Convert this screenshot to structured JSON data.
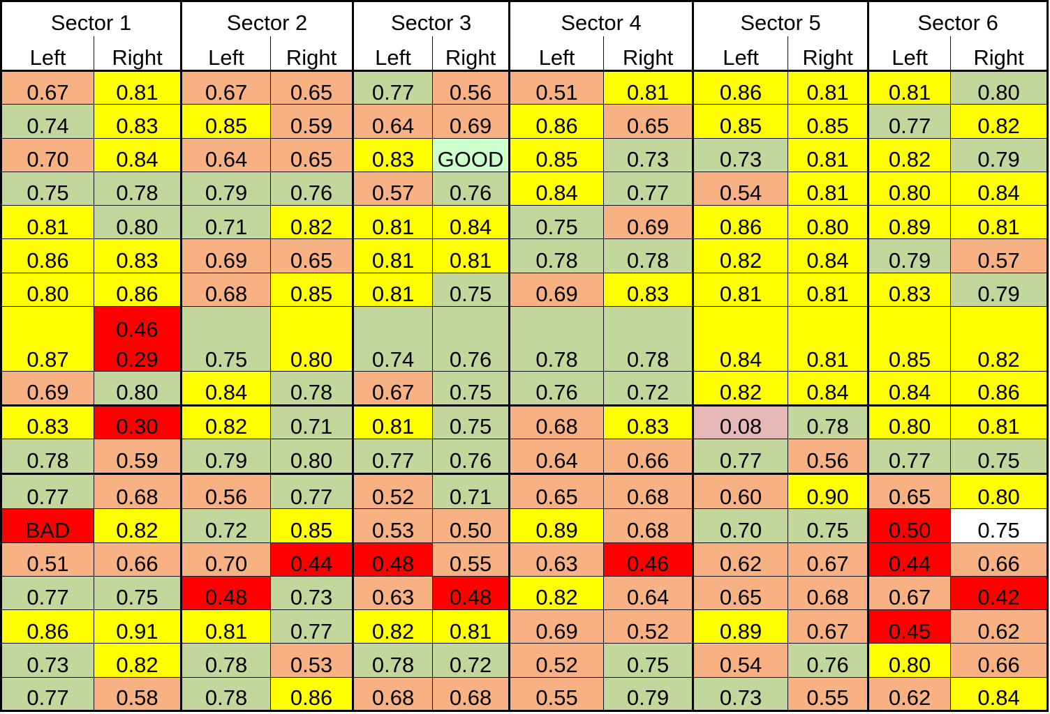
{
  "chart_data": {
    "type": "table",
    "title": "",
    "sectors": [
      "Sector 1",
      "Sector 2",
      "Sector 3",
      "Sector 4",
      "Sector 5",
      "Sector 6"
    ],
    "sides": [
      "Left",
      "Right"
    ],
    "palette": {
      "orange": "#F7B183",
      "yellow": "#FFFF00",
      "green": "#C3D69B",
      "red": "#FF0000",
      "pink": "#E6B9B8",
      "lightgreen": "#CCFFCC",
      "white": "#FFFFFF"
    },
    "separators_after_rows": [
      9,
      11
    ],
    "rows": [
      [
        [
          "0.67",
          "orange"
        ],
        [
          "0.81",
          "yellow"
        ],
        [
          "0.67",
          "orange"
        ],
        [
          "0.65",
          "orange"
        ],
        [
          "0.77",
          "green"
        ],
        [
          "0.56",
          "orange"
        ],
        [
          "0.51",
          "orange"
        ],
        [
          "0.81",
          "yellow"
        ],
        [
          "0.86",
          "yellow"
        ],
        [
          "0.81",
          "yellow"
        ],
        [
          "0.81",
          "yellow"
        ],
        [
          "0.80",
          "green"
        ]
      ],
      [
        [
          "0.74",
          "green"
        ],
        [
          "0.83",
          "yellow"
        ],
        [
          "0.85",
          "yellow"
        ],
        [
          "0.59",
          "orange"
        ],
        [
          "0.64",
          "orange"
        ],
        [
          "0.69",
          "orange"
        ],
        [
          "0.86",
          "yellow"
        ],
        [
          "0.65",
          "orange"
        ],
        [
          "0.85",
          "yellow"
        ],
        [
          "0.85",
          "yellow"
        ],
        [
          "0.77",
          "green"
        ],
        [
          "0.82",
          "yellow"
        ]
      ],
      [
        [
          "0.70",
          "orange"
        ],
        [
          "0.84",
          "yellow"
        ],
        [
          "0.64",
          "orange"
        ],
        [
          "0.65",
          "orange"
        ],
        [
          "0.83",
          "yellow"
        ],
        [
          "GOOD",
          "lightgreen"
        ],
        [
          "0.85",
          "yellow"
        ],
        [
          "0.73",
          "green"
        ],
        [
          "0.73",
          "green"
        ],
        [
          "0.81",
          "yellow"
        ],
        [
          "0.82",
          "yellow"
        ],
        [
          "0.79",
          "green"
        ]
      ],
      [
        [
          "0.75",
          "green"
        ],
        [
          "0.78",
          "green"
        ],
        [
          "0.79",
          "green"
        ],
        [
          "0.76",
          "green"
        ],
        [
          "0.57",
          "orange"
        ],
        [
          "0.76",
          "green"
        ],
        [
          "0.84",
          "yellow"
        ],
        [
          "0.77",
          "green"
        ],
        [
          "0.54",
          "orange"
        ],
        [
          "0.81",
          "yellow"
        ],
        [
          "0.80",
          "yellow"
        ],
        [
          "0.84",
          "yellow"
        ]
      ],
      [
        [
          "0.81",
          "yellow"
        ],
        [
          "0.80",
          "green"
        ],
        [
          "0.71",
          "green"
        ],
        [
          "0.82",
          "yellow"
        ],
        [
          "0.81",
          "yellow"
        ],
        [
          "0.84",
          "yellow"
        ],
        [
          "0.75",
          "green"
        ],
        [
          "0.69",
          "orange"
        ],
        [
          "0.86",
          "yellow"
        ],
        [
          "0.80",
          "yellow"
        ],
        [
          "0.89",
          "yellow"
        ],
        [
          "0.81",
          "yellow"
        ]
      ],
      [
        [
          "0.86",
          "yellow"
        ],
        [
          "0.83",
          "yellow"
        ],
        [
          "0.69",
          "orange"
        ],
        [
          "0.65",
          "orange"
        ],
        [
          "0.81",
          "yellow"
        ],
        [
          "0.81",
          "yellow"
        ],
        [
          "0.78",
          "green"
        ],
        [
          "0.78",
          "green"
        ],
        [
          "0.82",
          "yellow"
        ],
        [
          "0.84",
          "yellow"
        ],
        [
          "0.79",
          "green"
        ],
        [
          "0.57",
          "orange"
        ]
      ],
      [
        [
          "0.80",
          "yellow"
        ],
        [
          "0.86",
          "yellow"
        ],
        [
          "0.68",
          "orange"
        ],
        [
          "0.85",
          "yellow"
        ],
        [
          "0.81",
          "yellow"
        ],
        [
          "0.75",
          "green"
        ],
        [
          "0.69",
          "orange"
        ],
        [
          "0.83",
          "yellow"
        ],
        [
          "0.81",
          "yellow"
        ],
        [
          "0.81",
          "yellow"
        ],
        [
          "0.83",
          "yellow"
        ],
        [
          "0.79",
          "green"
        ]
      ],
      [
        [
          "0.87",
          "yellow"
        ],
        [
          "0.46\n0.29",
          "red"
        ],
        [
          "0.75",
          "green"
        ],
        [
          "0.80",
          "yellow"
        ],
        [
          "0.74",
          "green"
        ],
        [
          "0.76",
          "green"
        ],
        [
          "0.78",
          "green"
        ],
        [
          "0.78",
          "green"
        ],
        [
          "0.84",
          "yellow"
        ],
        [
          "0.81",
          "yellow"
        ],
        [
          "0.85",
          "yellow"
        ],
        [
          "0.82",
          "yellow"
        ]
      ],
      [
        [
          "0.69",
          "orange"
        ],
        [
          "0.80",
          "green"
        ],
        [
          "0.84",
          "yellow"
        ],
        [
          "0.78",
          "green"
        ],
        [
          "0.67",
          "orange"
        ],
        [
          "0.75",
          "green"
        ],
        [
          "0.76",
          "green"
        ],
        [
          "0.72",
          "green"
        ],
        [
          "0.82",
          "yellow"
        ],
        [
          "0.84",
          "yellow"
        ],
        [
          "0.84",
          "yellow"
        ],
        [
          "0.86",
          "yellow"
        ]
      ],
      [
        [
          "0.83",
          "yellow"
        ],
        [
          "0.30",
          "red"
        ],
        [
          "0.82",
          "yellow"
        ],
        [
          "0.71",
          "green"
        ],
        [
          "0.81",
          "yellow"
        ],
        [
          "0.75",
          "green"
        ],
        [
          "0.68",
          "orange"
        ],
        [
          "0.83",
          "yellow"
        ],
        [
          "0.08",
          "pink"
        ],
        [
          "0.78",
          "green"
        ],
        [
          "0.80",
          "yellow"
        ],
        [
          "0.81",
          "yellow"
        ]
      ],
      [
        [
          "0.78",
          "green"
        ],
        [
          "0.59",
          "orange"
        ],
        [
          "0.79",
          "green"
        ],
        [
          "0.80",
          "green"
        ],
        [
          "0.77",
          "green"
        ],
        [
          "0.76",
          "green"
        ],
        [
          "0.64",
          "orange"
        ],
        [
          "0.66",
          "orange"
        ],
        [
          "0.77",
          "green"
        ],
        [
          "0.56",
          "orange"
        ],
        [
          "0.77",
          "green"
        ],
        [
          "0.75",
          "green"
        ]
      ],
      [
        [
          "0.77",
          "green"
        ],
        [
          "0.68",
          "orange"
        ],
        [
          "0.56",
          "orange"
        ],
        [
          "0.77",
          "green"
        ],
        [
          "0.52",
          "orange"
        ],
        [
          "0.71",
          "green"
        ],
        [
          "0.65",
          "orange"
        ],
        [
          "0.68",
          "orange"
        ],
        [
          "0.60",
          "orange"
        ],
        [
          "0.90",
          "yellow"
        ],
        [
          "0.65",
          "orange"
        ],
        [
          "0.80",
          "yellow"
        ]
      ],
      [
        [
          "BAD",
          "red"
        ],
        [
          "0.82",
          "yellow"
        ],
        [
          "0.72",
          "green"
        ],
        [
          "0.85",
          "yellow"
        ],
        [
          "0.53",
          "orange"
        ],
        [
          "0.50",
          "orange"
        ],
        [
          "0.89",
          "yellow"
        ],
        [
          "0.68",
          "orange"
        ],
        [
          "0.70",
          "green"
        ],
        [
          "0.75",
          "green"
        ],
        [
          "0.50",
          "red"
        ],
        [
          "0.75",
          "white"
        ]
      ],
      [
        [
          "0.51",
          "orange"
        ],
        [
          "0.66",
          "orange"
        ],
        [
          "0.70",
          "orange"
        ],
        [
          "0.44",
          "red"
        ],
        [
          "0.48",
          "red"
        ],
        [
          "0.55",
          "orange"
        ],
        [
          "0.63",
          "orange"
        ],
        [
          "0.46",
          "red"
        ],
        [
          "0.62",
          "orange"
        ],
        [
          "0.67",
          "orange"
        ],
        [
          "0.44",
          "red"
        ],
        [
          "0.66",
          "orange"
        ]
      ],
      [
        [
          "0.77",
          "green"
        ],
        [
          "0.75",
          "green"
        ],
        [
          "0.48",
          "red"
        ],
        [
          "0.73",
          "green"
        ],
        [
          "0.63",
          "orange"
        ],
        [
          "0.48",
          "red"
        ],
        [
          "0.82",
          "yellow"
        ],
        [
          "0.64",
          "orange"
        ],
        [
          "0.65",
          "orange"
        ],
        [
          "0.68",
          "orange"
        ],
        [
          "0.67",
          "orange"
        ],
        [
          "0.42",
          "red"
        ]
      ],
      [
        [
          "0.86",
          "yellow"
        ],
        [
          "0.91",
          "yellow"
        ],
        [
          "0.81",
          "yellow"
        ],
        [
          "0.77",
          "green"
        ],
        [
          "0.82",
          "yellow"
        ],
        [
          "0.81",
          "yellow"
        ],
        [
          "0.69",
          "orange"
        ],
        [
          "0.52",
          "orange"
        ],
        [
          "0.89",
          "yellow"
        ],
        [
          "0.67",
          "orange"
        ],
        [
          "0.45",
          "red"
        ],
        [
          "0.62",
          "orange"
        ]
      ],
      [
        [
          "0.73",
          "green"
        ],
        [
          "0.82",
          "yellow"
        ],
        [
          "0.78",
          "green"
        ],
        [
          "0.53",
          "orange"
        ],
        [
          "0.78",
          "green"
        ],
        [
          "0.72",
          "green"
        ],
        [
          "0.52",
          "orange"
        ],
        [
          "0.75",
          "green"
        ],
        [
          "0.54",
          "orange"
        ],
        [
          "0.76",
          "green"
        ],
        [
          "0.80",
          "yellow"
        ],
        [
          "0.66",
          "orange"
        ]
      ],
      [
        [
          "0.77",
          "green"
        ],
        [
          "0.58",
          "orange"
        ],
        [
          "0.78",
          "green"
        ],
        [
          "0.86",
          "yellow"
        ],
        [
          "0.68",
          "orange"
        ],
        [
          "0.68",
          "orange"
        ],
        [
          "0.55",
          "orange"
        ],
        [
          "0.79",
          "green"
        ],
        [
          "0.73",
          "green"
        ],
        [
          "0.55",
          "orange"
        ],
        [
          "0.62",
          "orange"
        ],
        [
          "0.84",
          "yellow"
        ]
      ]
    ]
  }
}
